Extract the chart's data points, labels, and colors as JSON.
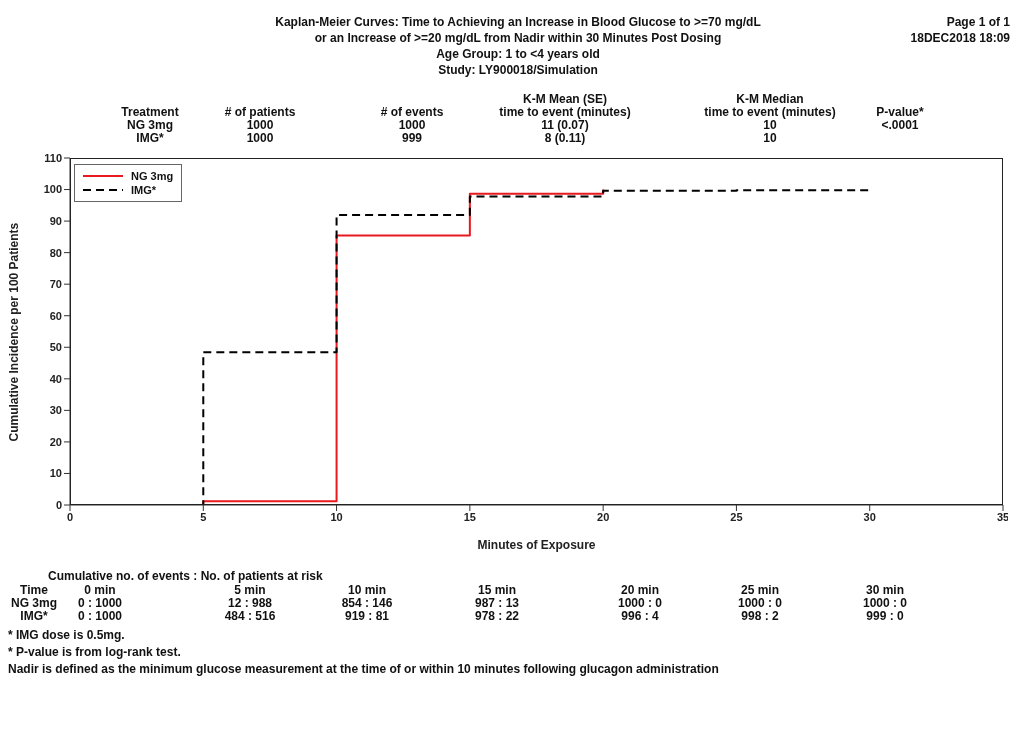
{
  "chart_data": {
    "type": "step",
    "title": "Kaplan-Meier Curves: Time to Achieving an Increase in Blood Glucose to >=70 mg/dL\nor an Increase of >=20 mg/dL from Nadir within 30 Minutes Post Dosing",
    "subtitle": "Age Group: 1 to <4 years old\nStudy: LY900018/Simulation",
    "xlabel": "Minutes of Exposure",
    "ylabel": "Cumulative Incidence per 100 Patients",
    "series": [
      {
        "name": "NG 3mg",
        "color": "#e8191f",
        "line_style": "solid",
        "x": [
          0,
          5,
          10,
          15,
          20
        ],
        "values": [
          0,
          1.2,
          85.4,
          98.7,
          100
        ]
      },
      {
        "name": "IMG*",
        "color": "#000000",
        "line_style": "dashed",
        "x": [
          0,
          5,
          10,
          15,
          20,
          25,
          30
        ],
        "values": [
          0,
          48.4,
          91.9,
          97.8,
          99.6,
          99.8,
          99.9
        ]
      }
    ],
    "xlim": [
      0,
      35
    ],
    "xticks": [
      0,
      5,
      10,
      15,
      20,
      25,
      30,
      35
    ],
    "ylim": [
      0,
      110
    ],
    "yticks": [
      0,
      10,
      20,
      30,
      40,
      50,
      60,
      70,
      80,
      90,
      100,
      110
    ],
    "grid": false,
    "legend": "top left",
    "marker": "none",
    "annotations": [
      "Page 1 of 1",
      "18DEC2018 18:09",
      "Treatment",
      "# of patients",
      "# of events",
      "K-M Mean (SE)\ntime to event (minutes)",
      "K-M Median\ntime to event (minutes)",
      "P-value*",
      "NG 3mg",
      "1000",
      "1000",
      "11 (0.07)",
      "10",
      "<.0001",
      "IMG*",
      "1000",
      "999",
      "8 (0.11)",
      "10",
      "Cumulative no. of events : No. of patients at risk",
      "Time",
      "0 min",
      "5 min",
      "10 min",
      "15 min",
      "20 min",
      "25 min",
      "30 min",
      "NG 3mg",
      "0 : 1000",
      "12 : 988",
      "854 : 146",
      "987 : 13",
      "1000 : 0",
      "1000 : 0",
      "1000 : 0",
      "IMG*",
      "0 : 1000",
      "484 : 516",
      "919 : 81",
      "978 : 22",
      "996 : 4",
      "998 : 2",
      "999 : 0",
      "* IMG dose is 0.5mg.",
      "* P-value is from log-rank test.",
      "Nadir is defined as the minimum glucose measurement at the time of or within 10 minutes following glucagon administration"
    ]
  }
}
